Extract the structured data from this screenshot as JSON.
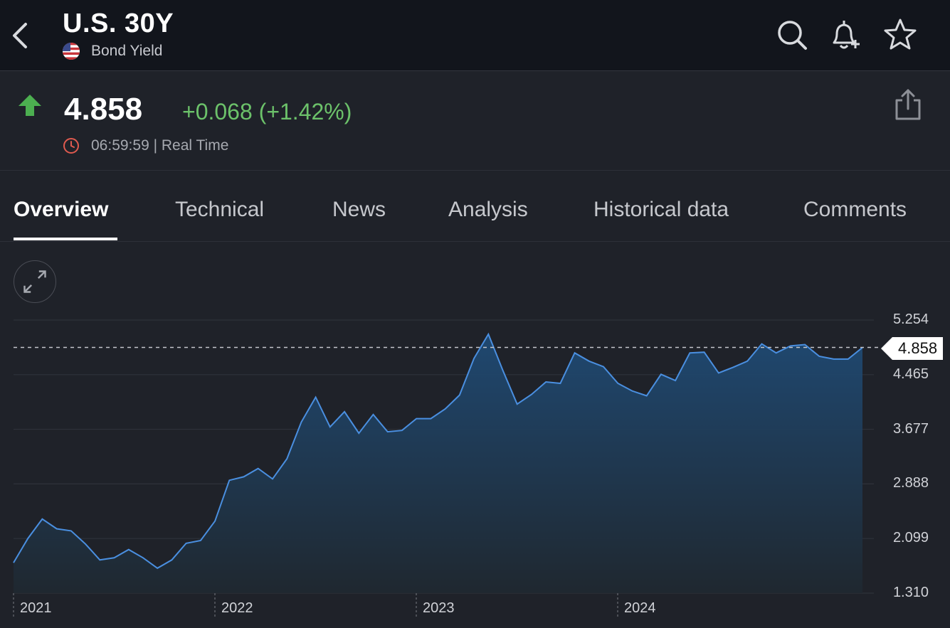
{
  "header": {
    "title": "U.S. 30Y",
    "subtitle": "Bond Yield",
    "icons": [
      "back-icon",
      "search-icon",
      "bell-plus-icon",
      "star-icon"
    ]
  },
  "quote": {
    "price": "4.858",
    "change": "+0.068 (+1.42%)",
    "time": "06:59:59 | Real Time",
    "direction": "up",
    "colors": {
      "up": "#6cc26a",
      "arrow": "#4caf50",
      "clock": "#e05a4f"
    }
  },
  "tabs": [
    {
      "label": "Overview",
      "active": true
    },
    {
      "label": "Technical",
      "active": false
    },
    {
      "label": "News",
      "active": false
    },
    {
      "label": "Analysis",
      "active": false
    },
    {
      "label": "Historical data",
      "active": false
    },
    {
      "label": "Comments",
      "active": false
    }
  ],
  "chart_data": {
    "type": "area",
    "series": [
      {
        "values": [
          1.75,
          2.1,
          2.38,
          2.24,
          2.21,
          2.02,
          1.79,
          1.82,
          1.94,
          1.82,
          1.67,
          1.79,
          2.03,
          2.07,
          2.35,
          2.94,
          2.99,
          3.11,
          2.96,
          3.25,
          3.78,
          4.14,
          3.71,
          3.93,
          3.62,
          3.89,
          3.64,
          3.66,
          3.83,
          3.83,
          3.97,
          4.17,
          4.7,
          5.05,
          4.53,
          4.04,
          4.18,
          4.36,
          4.34,
          4.78,
          4.66,
          4.58,
          4.34,
          4.23,
          4.16,
          4.47,
          4.38,
          4.78,
          4.79,
          4.49,
          4.57,
          4.66,
          4.91,
          4.78,
          4.88,
          4.9,
          4.73,
          4.69,
          4.69,
          4.858
        ]
      }
    ],
    "x_labels": [
      "2021",
      "2022",
      "2023",
      "2024"
    ],
    "y_ticks": [
      "5.254",
      "4.465",
      "3.677",
      "2.888",
      "2.099",
      "1.310"
    ],
    "ylim": [
      1.31,
      5.254
    ],
    "last_value_label": "4.858",
    "grid": true,
    "colors": {
      "line": "#4a8fe0",
      "fill_top": "#1f4a74",
      "fill_bottom": "#1f2830"
    }
  }
}
